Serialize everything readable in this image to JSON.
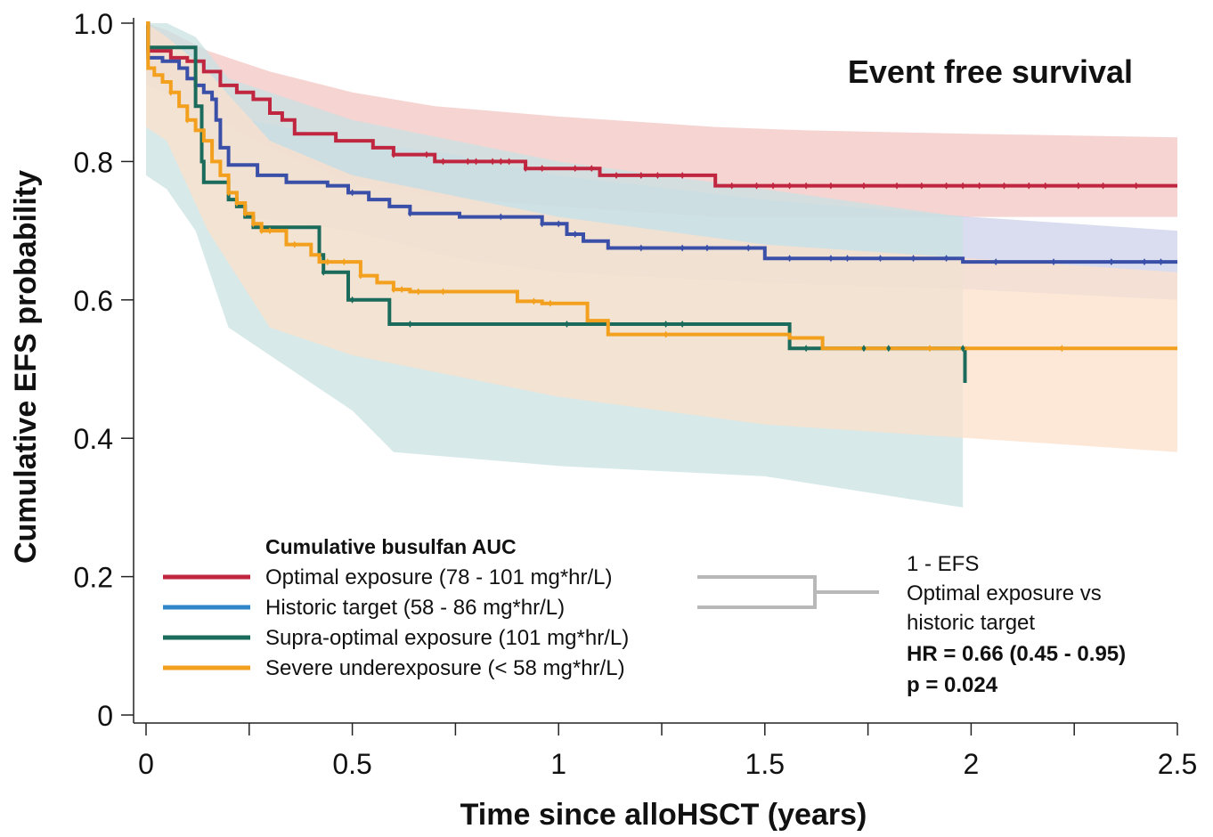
{
  "chart_data": {
    "type": "line",
    "subtype": "kaplan-meier",
    "title": "Event free survival",
    "xlabel": "Time since alloHSCT (years)",
    "ylabel": "Cumulative EFS probability",
    "xlim": [
      0,
      2.5
    ],
    "ylim": [
      0,
      1.0
    ],
    "x_ticks": [
      "0",
      "0.5",
      "1",
      "1.5",
      "2",
      "2.5"
    ],
    "x_tick_values": [
      0,
      0.5,
      1,
      1.5,
      2,
      2.5
    ],
    "x_minor_ticks": [
      0.25,
      0.75,
      1.25,
      1.75,
      2.25
    ],
    "y_ticks": [
      "0",
      "0.2",
      "0.4",
      "0.6",
      "0.8",
      "1.0"
    ],
    "y_tick_values": [
      0,
      0.2,
      0.4,
      0.6,
      0.8,
      1.0
    ],
    "grid": false,
    "legend": {
      "title": "Cumulative busulfan AUC",
      "position": "bottom-left"
    },
    "series": [
      {
        "name": "Optimal exposure (78 - 101 mg*hr/L)",
        "color": "#c0263f",
        "band_color": "#f2c6c3",
        "steps": [
          [
            0,
            1.0
          ],
          [
            0.005,
            0.96
          ],
          [
            0.06,
            0.95
          ],
          [
            0.1,
            0.945
          ],
          [
            0.14,
            0.93
          ],
          [
            0.18,
            0.91
          ],
          [
            0.22,
            0.9
          ],
          [
            0.26,
            0.89
          ],
          [
            0.3,
            0.87
          ],
          [
            0.33,
            0.86
          ],
          [
            0.36,
            0.84
          ],
          [
            0.46,
            0.83
          ],
          [
            0.55,
            0.82
          ],
          [
            0.6,
            0.81
          ],
          [
            0.7,
            0.8
          ],
          [
            0.92,
            0.79
          ],
          [
            1.1,
            0.78
          ],
          [
            1.38,
            0.765
          ],
          [
            2.5,
            0.765
          ]
        ],
        "ci_upper": [
          [
            0,
            1.0
          ],
          [
            0.05,
            0.99
          ],
          [
            0.15,
            0.96
          ],
          [
            0.3,
            0.93
          ],
          [
            0.5,
            0.9
          ],
          [
            0.7,
            0.88
          ],
          [
            1.0,
            0.865
          ],
          [
            1.38,
            0.85
          ],
          [
            1.6,
            0.845
          ],
          [
            2.0,
            0.84
          ],
          [
            2.5,
            0.835
          ]
        ],
        "ci_lower": [
          [
            0,
            0.93
          ],
          [
            0.05,
            0.91
          ],
          [
            0.15,
            0.87
          ],
          [
            0.3,
            0.82
          ],
          [
            0.5,
            0.77
          ],
          [
            0.7,
            0.75
          ],
          [
            1.0,
            0.735
          ],
          [
            1.38,
            0.72
          ],
          [
            1.6,
            0.72
          ],
          [
            2.0,
            0.72
          ],
          [
            2.5,
            0.72
          ]
        ],
        "censors": [
          0.6,
          0.68,
          0.72,
          0.78,
          0.8,
          0.84,
          0.86,
          0.88,
          0.92,
          0.96,
          1.04,
          1.08,
          1.14,
          1.2,
          1.24,
          1.3,
          1.42,
          1.48,
          1.52,
          1.56,
          1.6,
          1.66,
          1.74,
          1.82,
          1.88,
          1.94,
          1.98,
          2.02,
          2.08,
          2.14,
          2.18,
          2.26,
          2.32,
          2.4
        ]
      },
      {
        "name": "Historic target (58 - 86 mg*hr/L)",
        "color": "#3a4fa8",
        "legend_color": "#2f86c8",
        "band_color": "#ccd2ea",
        "steps": [
          [
            0,
            1.0
          ],
          [
            0.005,
            0.95
          ],
          [
            0.04,
            0.945
          ],
          [
            0.08,
            0.935
          ],
          [
            0.1,
            0.92
          ],
          [
            0.12,
            0.91
          ],
          [
            0.14,
            0.9
          ],
          [
            0.16,
            0.89
          ],
          [
            0.17,
            0.86
          ],
          [
            0.18,
            0.82
          ],
          [
            0.2,
            0.795
          ],
          [
            0.27,
            0.78
          ],
          [
            0.34,
            0.77
          ],
          [
            0.44,
            0.765
          ],
          [
            0.49,
            0.755
          ],
          [
            0.54,
            0.745
          ],
          [
            0.59,
            0.735
          ],
          [
            0.64,
            0.725
          ],
          [
            0.76,
            0.72
          ],
          [
            0.96,
            0.71
          ],
          [
            1.02,
            0.695
          ],
          [
            1.06,
            0.685
          ],
          [
            1.12,
            0.675
          ],
          [
            1.5,
            0.66
          ],
          [
            1.98,
            0.655
          ],
          [
            2.5,
            0.655
          ]
        ],
        "ci_upper": [
          [
            0,
            1.0
          ],
          [
            0.05,
            0.98
          ],
          [
            0.15,
            0.94
          ],
          [
            0.25,
            0.86
          ],
          [
            0.5,
            0.83
          ],
          [
            0.75,
            0.81
          ],
          [
            1.0,
            0.78
          ],
          [
            1.5,
            0.745
          ],
          [
            2.0,
            0.72
          ],
          [
            2.5,
            0.7
          ]
        ],
        "ci_lower": [
          [
            0,
            0.91
          ],
          [
            0.05,
            0.9
          ],
          [
            0.15,
            0.83
          ],
          [
            0.25,
            0.72
          ],
          [
            0.5,
            0.7
          ],
          [
            0.75,
            0.66
          ],
          [
            1.0,
            0.64
          ],
          [
            1.5,
            0.625
          ],
          [
            2.0,
            0.615
          ],
          [
            2.5,
            0.6
          ]
        ],
        "censors": [
          0.5,
          0.64,
          0.86,
          0.96,
          1.0,
          1.04,
          1.2,
          1.3,
          1.36,
          1.46,
          1.56,
          1.66,
          1.7,
          1.78,
          1.86,
          1.94,
          2.06,
          2.2,
          2.34,
          2.42,
          2.46
        ]
      },
      {
        "name": "Supra-optimal exposure (101 mg*hr/L)",
        "color": "#1a6b5b",
        "band_color": "#c9e2e2",
        "steps": [
          [
            0,
            1.0
          ],
          [
            0.005,
            0.965
          ],
          [
            0.11,
            0.965
          ],
          [
            0.12,
            0.88
          ],
          [
            0.135,
            0.8
          ],
          [
            0.14,
            0.77
          ],
          [
            0.2,
            0.745
          ],
          [
            0.22,
            0.735
          ],
          [
            0.24,
            0.72
          ],
          [
            0.26,
            0.705
          ],
          [
            0.42,
            0.665
          ],
          [
            0.43,
            0.64
          ],
          [
            0.49,
            0.6
          ],
          [
            0.59,
            0.565
          ],
          [
            1.56,
            0.53
          ],
          [
            1.98,
            0.53
          ],
          [
            1.985,
            0.48
          ]
        ],
        "ci_upper": [
          [
            0,
            1.0
          ],
          [
            0.05,
            1.0
          ],
          [
            0.12,
            0.98
          ],
          [
            0.2,
            0.92
          ],
          [
            0.5,
            0.86
          ],
          [
            1.0,
            0.8
          ],
          [
            1.5,
            0.76
          ],
          [
            1.98,
            0.72
          ]
        ],
        "ci_lower": [
          [
            0,
            0.78
          ],
          [
            0.05,
            0.76
          ],
          [
            0.12,
            0.7
          ],
          [
            0.2,
            0.56
          ],
          [
            0.5,
            0.44
          ],
          [
            0.6,
            0.38
          ],
          [
            1.0,
            0.36
          ],
          [
            1.5,
            0.345
          ],
          [
            1.98,
            0.3
          ]
        ],
        "censors": [
          0.43,
          0.5,
          0.64,
          1.02,
          1.26,
          1.3,
          1.6,
          1.74,
          1.8,
          1.98
        ]
      },
      {
        "name": "Severe underexposure (< 58 mg*hr/L)",
        "color": "#f2a01e",
        "band_color": "#fce0cb",
        "steps": [
          [
            0,
            1.0
          ],
          [
            0.005,
            0.935
          ],
          [
            0.02,
            0.925
          ],
          [
            0.04,
            0.915
          ],
          [
            0.06,
            0.9
          ],
          [
            0.08,
            0.88
          ],
          [
            0.1,
            0.86
          ],
          [
            0.12,
            0.845
          ],
          [
            0.14,
            0.83
          ],
          [
            0.16,
            0.8
          ],
          [
            0.18,
            0.78
          ],
          [
            0.2,
            0.755
          ],
          [
            0.22,
            0.74
          ],
          [
            0.24,
            0.725
          ],
          [
            0.26,
            0.71
          ],
          [
            0.28,
            0.7
          ],
          [
            0.34,
            0.68
          ],
          [
            0.4,
            0.665
          ],
          [
            0.42,
            0.655
          ],
          [
            0.52,
            0.635
          ],
          [
            0.56,
            0.625
          ],
          [
            0.6,
            0.615
          ],
          [
            0.64,
            0.612
          ],
          [
            0.9,
            0.598
          ],
          [
            0.96,
            0.595
          ],
          [
            1.07,
            0.57
          ],
          [
            1.12,
            0.55
          ],
          [
            1.56,
            0.545
          ],
          [
            1.64,
            0.53
          ],
          [
            2.5,
            0.53
          ]
        ],
        "ci_upper": [
          [
            0,
            1.0
          ],
          [
            0.05,
            0.98
          ],
          [
            0.15,
            0.93
          ],
          [
            0.3,
            0.83
          ],
          [
            0.5,
            0.78
          ],
          [
            1.0,
            0.72
          ],
          [
            1.5,
            0.68
          ],
          [
            2.0,
            0.66
          ],
          [
            2.5,
            0.64
          ]
        ],
        "ci_lower": [
          [
            0,
            0.85
          ],
          [
            0.05,
            0.83
          ],
          [
            0.15,
            0.7
          ],
          [
            0.3,
            0.56
          ],
          [
            0.5,
            0.52
          ],
          [
            1.0,
            0.46
          ],
          [
            1.5,
            0.42
          ],
          [
            2.0,
            0.4
          ],
          [
            2.5,
            0.38
          ]
        ],
        "censors": [
          0.06,
          0.1,
          0.2,
          0.22,
          0.24,
          0.26,
          0.28,
          0.3,
          0.36,
          0.44,
          0.48,
          0.52,
          0.6,
          0.62,
          0.66,
          0.72,
          0.94,
          0.98,
          1.26,
          1.9,
          2.22
        ]
      }
    ],
    "annotation": {
      "lines": [
        "1 - EFS",
        "Optimal exposure vs",
        "historic target"
      ],
      "hr": "HR = 0.66 (0.45 - 0.95)",
      "p": "p = 0.024"
    }
  }
}
